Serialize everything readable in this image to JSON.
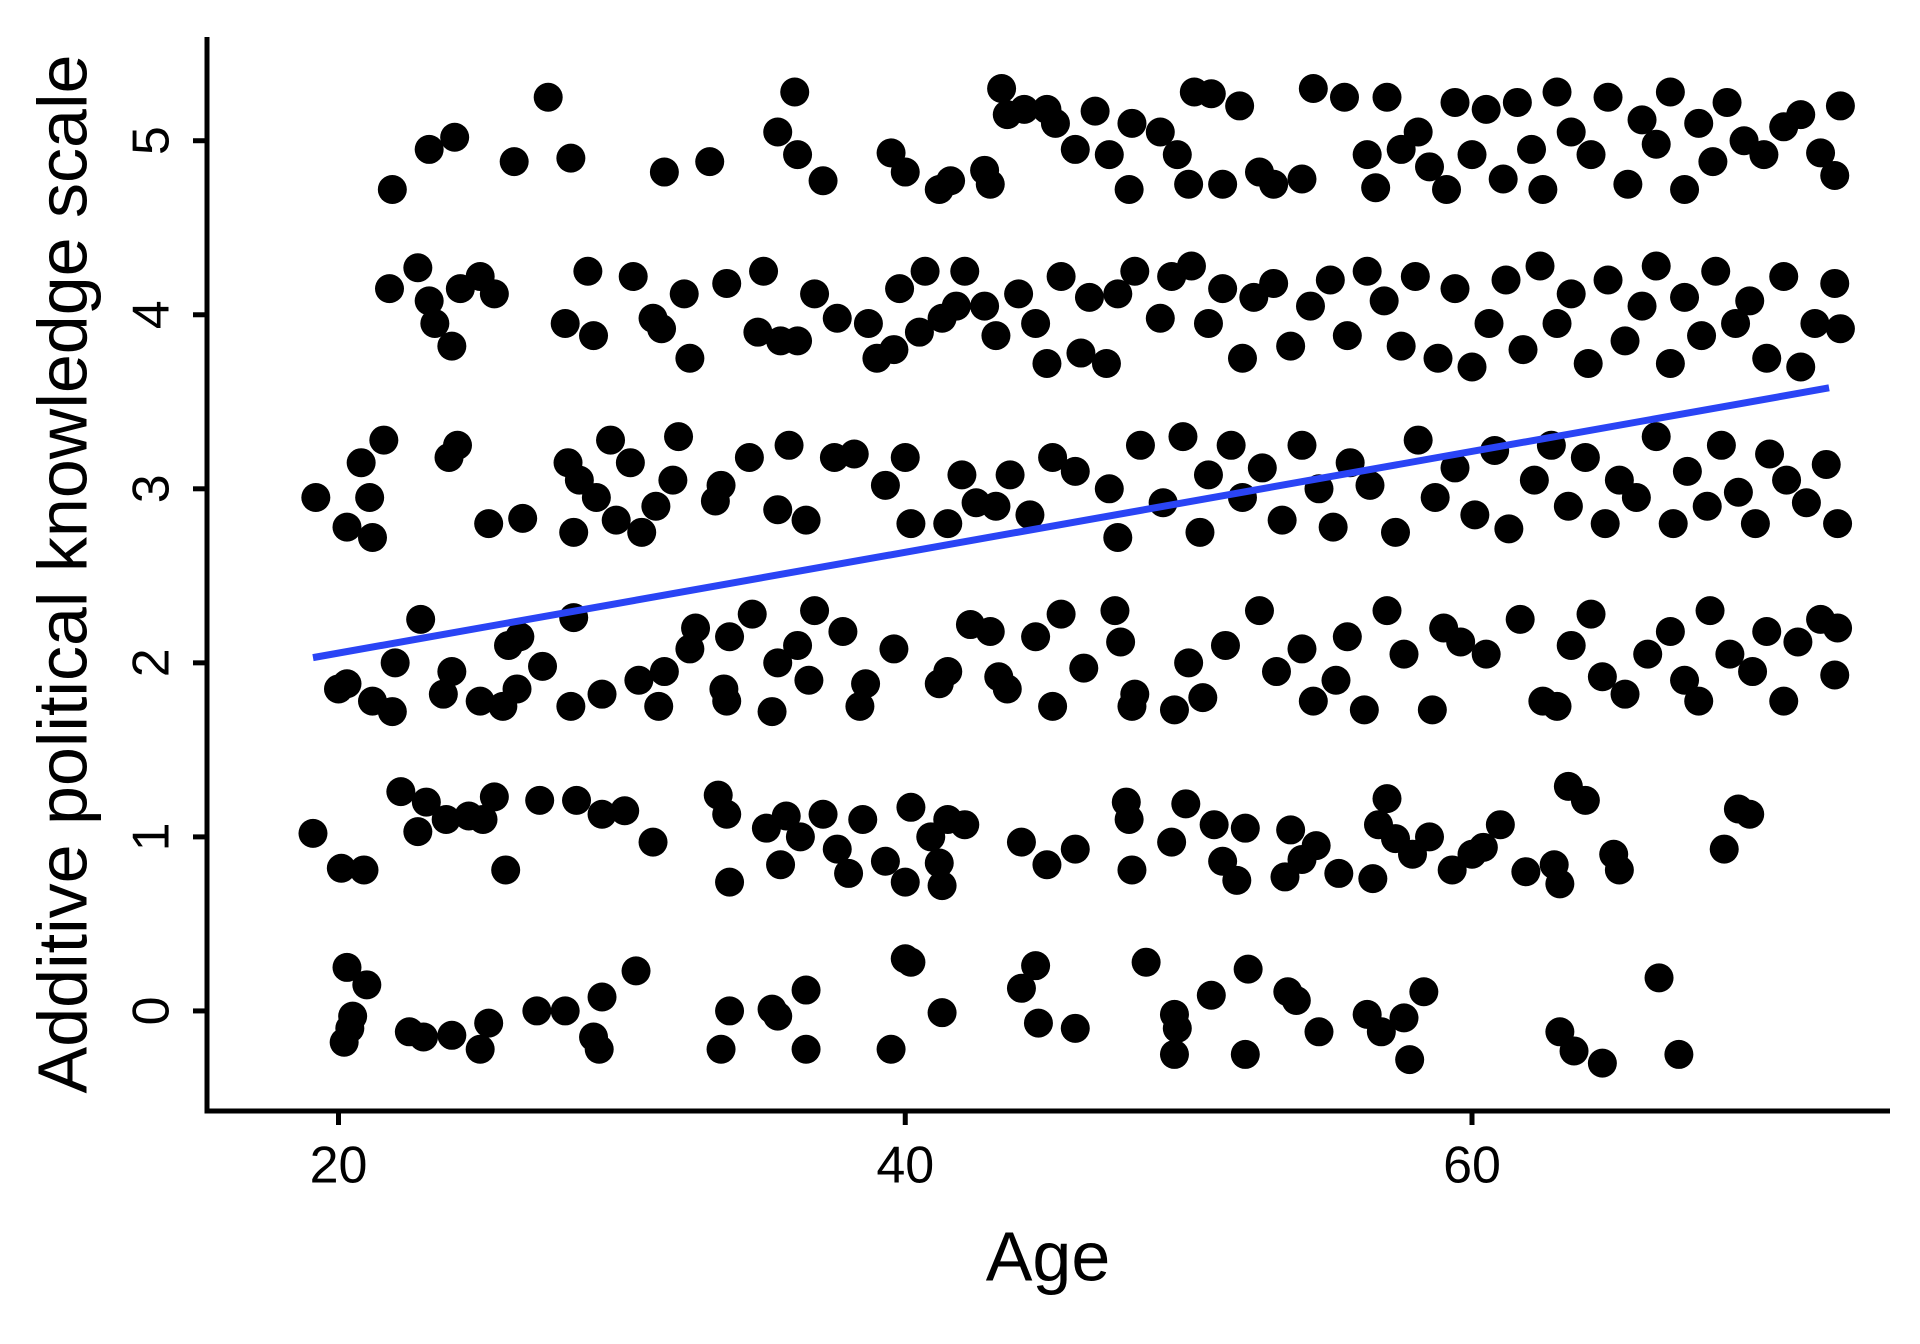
{
  "chart_data": {
    "type": "scatter",
    "xlabel": "Age",
    "ylabel": "Additive political knowledge scale",
    "xlim": [
      15.36,
      74.75
    ],
    "ylim": [
      -0.575,
      5.596
    ],
    "xticks": [
      20,
      40,
      60
    ],
    "yticks": [
      0,
      1,
      2,
      3,
      4,
      5
    ],
    "series": [
      {
        "color": "#000000",
        "x": [
          20.2,
          20.4,
          20.5,
          20.3,
          21.0,
          22.5,
          23,
          24,
          25,
          25.3,
          27,
          28,
          29,
          29.2,
          29.3,
          30.5,
          33.5,
          33.8,
          35.3,
          35.5,
          36.5,
          36.5,
          39.5,
          40,
          40.2,
          41.3,
          44.1,
          44.6,
          44.7,
          46,
          48.5,
          49.5,
          49.6,
          49.5,
          50.8,
          52,
          52.1,
          53.5,
          53.8,
          54.6,
          56.3,
          56.8,
          57.6,
          57.8,
          58.3,
          63.1,
          63.6,
          64.6,
          66.6,
          67.3,
          19.1,
          20.1,
          20.9,
          22.2,
          22.8,
          23.1,
          23.8,
          24.6,
          25.1,
          25.5,
          25.9,
          27.1,
          28.4,
          29.3,
          30.1,
          31.1,
          33.4,
          33.7,
          33.8,
          35.1,
          35.6,
          35.8,
          36.3,
          37.1,
          37.6,
          38,
          38.5,
          39.3,
          40,
          40.2,
          40.9,
          41.2,
          41.3,
          41.5,
          42.1,
          44.1,
          45,
          46,
          47.8,
          47.9,
          48,
          49.4,
          49.9,
          50.9,
          51.2,
          51.7,
          52,
          53.4,
          53.6,
          54,
          54.5,
          55.3,
          56.5,
          56.7,
          57,
          57.3,
          57.9,
          58.5,
          59.3,
          60,
          60.4,
          61,
          61.9,
          62.9,
          63.1,
          63.4,
          64,
          65,
          65.2,
          68.9,
          69.4,
          69.8,
          20,
          20.3,
          21.2,
          21.9,
          22,
          22.9,
          23.7,
          24,
          25,
          25.8,
          26,
          26.3,
          26.4,
          27.2,
          28.2,
          28.3,
          29.3,
          30.6,
          31.3,
          31.5,
          32.4,
          32.6,
          33.6,
          33.7,
          33.8,
          34.6,
          35.3,
          35.5,
          36.2,
          36.6,
          36.8,
          37.8,
          38.4,
          38.6,
          39.6,
          41.2,
          41.5,
          42.3,
          43,
          43.3,
          43.6,
          44.6,
          45.2,
          45.5,
          46.3,
          47.4,
          47.6,
          48.1,
          48,
          49.5,
          50,
          50.5,
          51.3,
          52.5,
          53.1,
          54,
          54.4,
          55.2,
          55.6,
          56.2,
          57,
          57.6,
          58.6,
          59,
          59.6,
          60.5,
          61.7,
          62.5,
          63,
          63.5,
          64.2,
          64.6,
          65.4,
          66.2,
          67,
          67.5,
          68,
          68.4,
          69.1,
          69.9,
          70.4,
          71,
          71.5,
          72.3,
          72.8,
          72.9,
          19.2,
          20.3,
          20.8,
          21.1,
          21.2,
          21.6,
          23.9,
          24.2,
          25.3,
          26.5,
          28.1,
          28.3,
          28.5,
          29.1,
          29.6,
          29.8,
          30.3,
          30.7,
          31.2,
          31.8,
          32,
          33.3,
          33.5,
          34.5,
          35.5,
          35.9,
          36.5,
          37.5,
          38.2,
          39.3,
          40,
          40.2,
          41.5,
          42,
          42.5,
          43.2,
          43.7,
          44.4,
          45.2,
          46,
          47.2,
          47.5,
          48.3,
          49.1,
          49.8,
          50.4,
          50.7,
          51.5,
          51.9,
          52.6,
          53.3,
          54,
          54.6,
          55.1,
          55.7,
          56.4,
          57.3,
          58.1,
          58.7,
          59.4,
          60.1,
          60.8,
          61.3,
          62.2,
          62.8,
          63.4,
          64,
          64.7,
          65.2,
          65.8,
          66.5,
          67.1,
          67.6,
          68.3,
          68.8,
          69.4,
          70,
          70.5,
          71.1,
          71.8,
          72.5,
          72.9,
          21.8,
          22.8,
          23.2,
          23.4,
          24,
          24.3,
          25,
          25.5,
          28,
          28.8,
          29,
          30.4,
          31.1,
          31.4,
          32.2,
          32.4,
          33.7,
          34.8,
          35,
          35.6,
          36.2,
          36.8,
          37.6,
          38.7,
          39,
          39.6,
          39.8,
          40.5,
          40.7,
          41.3,
          41.8,
          42.1,
          42.8,
          43.2,
          44,
          44.6,
          45,
          45.5,
          46.2,
          46.5,
          47.1,
          47.5,
          48.1,
          49,
          49.4,
          50.1,
          50.7,
          51.2,
          51.9,
          52.3,
          53,
          53.6,
          54.3,
          55,
          55.6,
          56.3,
          56.9,
          57.5,
          58,
          58.8,
          59.4,
          60,
          60.6,
          61.2,
          61.8,
          62.4,
          63,
          63.5,
          64.1,
          64.8,
          65.4,
          66,
          66.5,
          67,
          67.5,
          68.1,
          68.6,
          69.3,
          69.8,
          70.4,
          71,
          71.6,
          72.1,
          72.8,
          73,
          21.9,
          23.2,
          24.1,
          26.2,
          27.4,
          28.2,
          31.5,
          33.1,
          35.5,
          36.1,
          36.2,
          37.1,
          39.5,
          40,
          41.2,
          41.6,
          42.8,
          43,
          43.4,
          43.6,
          44.2,
          45,
          45.3,
          46,
          46.7,
          47.2,
          47.9,
          48,
          49,
          49.6,
          50,
          50.2,
          50.8,
          51.2,
          51.8,
          52.5,
          53,
          54,
          54.4,
          55.5,
          56.3,
          56.6,
          57,
          57.5,
          58.1,
          58.5,
          59.1,
          59.4,
          60,
          60.5,
          61.1,
          61.6,
          62.1,
          62.5,
          63,
          63.5,
          64.2,
          64.8,
          65.5,
          66,
          66.5,
          67,
          67.5,
          68,
          68.5,
          69,
          69.6,
          70.3,
          71,
          71.6,
          72.3,
          72.8,
          73
        ],
        "y": [
          -0.18,
          -0.1,
          -0.03,
          0.25,
          0.15,
          -0.12,
          -0.15,
          -0.14,
          -0.22,
          -0.07,
          0,
          0,
          -0.15,
          -0.22,
          0.08,
          0.23,
          -0.22,
          0,
          0.01,
          -0.03,
          0.12,
          -0.22,
          -0.22,
          0.3,
          0.28,
          -0.01,
          0.13,
          0.26,
          -0.07,
          -0.1,
          0.28,
          -0.02,
          -0.1,
          -0.25,
          0.09,
          -0.25,
          0.24,
          0.11,
          0.06,
          -0.12,
          -0.02,
          -0.12,
          -0.04,
          -0.28,
          0.11,
          -0.12,
          -0.23,
          -0.3,
          0.19,
          -0.25,
          1.02,
          0.82,
          0.81,
          1.26,
          1.03,
          1.2,
          1.1,
          1.12,
          1.1,
          1.23,
          0.81,
          1.21,
          1.21,
          1.13,
          1.15,
          0.97,
          1.24,
          1.13,
          0.74,
          1.05,
          0.84,
          1.12,
          1.0,
          1.13,
          0.93,
          0.79,
          1.1,
          0.86,
          0.74,
          1.17,
          1.0,
          0.85,
          0.72,
          1.1,
          1.07,
          0.97,
          0.84,
          0.93,
          1.2,
          1.1,
          0.81,
          0.97,
          1.19,
          1.07,
          0.86,
          0.75,
          1.05,
          0.77,
          1.04,
          0.87,
          0.95,
          0.79,
          0.76,
          1.07,
          1.22,
          0.99,
          0.9,
          1.0,
          0.81,
          0.9,
          0.94,
          1.07,
          0.8,
          0.84,
          0.73,
          1.29,
          1.21,
          0.9,
          0.81,
          0.93,
          1.16,
          1.13,
          1.85,
          1.88,
          1.78,
          1.72,
          2.0,
          2.25,
          1.82,
          1.95,
          1.78,
          1.75,
          2.1,
          1.85,
          2.15,
          1.98,
          1.75,
          2.26,
          1.82,
          1.9,
          1.75,
          1.95,
          2.08,
          2.2,
          1.85,
          1.78,
          2.15,
          2.28,
          1.72,
          2.0,
          2.1,
          1.9,
          2.3,
          2.18,
          1.75,
          1.88,
          2.08,
          1.88,
          1.95,
          2.22,
          2.18,
          1.92,
          1.85,
          2.15,
          1.75,
          2.28,
          1.97,
          2.3,
          2.12,
          1.82,
          1.75,
          1.73,
          2.0,
          1.8,
          2.1,
          2.3,
          1.95,
          2.08,
          1.78,
          1.9,
          2.15,
          1.73,
          2.3,
          2.05,
          1.73,
          2.2,
          2.12,
          2.05,
          2.25,
          1.78,
          1.75,
          2.1,
          2.28,
          1.92,
          1.82,
          2.05,
          2.18,
          1.9,
          1.78,
          2.3,
          2.05,
          1.95,
          2.18,
          1.78,
          2.12,
          2.25,
          1.93,
          2.2,
          2.95,
          2.78,
          3.15,
          2.95,
          2.72,
          3.28,
          3.18,
          3.25,
          2.8,
          2.83,
          3.15,
          2.75,
          3.05,
          2.95,
          3.28,
          2.82,
          3.15,
          2.75,
          2.9,
          3.05,
          3.3,
          2.93,
          3.02,
          3.18,
          2.88,
          3.25,
          2.82,
          3.18,
          3.2,
          3.02,
          3.18,
          2.8,
          2.8,
          3.08,
          2.92,
          2.9,
          3.08,
          2.85,
          3.18,
          3.1,
          3.0,
          2.72,
          3.25,
          2.92,
          3.3,
          2.75,
          3.08,
          3.25,
          2.95,
          3.12,
          2.82,
          3.25,
          3.0,
          2.78,
          3.15,
          3.02,
          2.75,
          3.28,
          2.95,
          3.12,
          2.85,
          3.22,
          2.77,
          3.05,
          3.25,
          2.9,
          3.18,
          2.8,
          3.05,
          2.95,
          3.3,
          2.8,
          3.1,
          2.9,
          3.25,
          2.98,
          2.8,
          3.2,
          3.05,
          2.92,
          3.14,
          2.8,
          4.15,
          4.27,
          4.08,
          3.95,
          3.82,
          4.15,
          4.22,
          4.12,
          3.95,
          4.25,
          3.88,
          4.22,
          3.98,
          3.92,
          4.12,
          3.75,
          4.18,
          3.9,
          4.25,
          3.85,
          3.85,
          4.12,
          3.98,
          3.95,
          3.75,
          3.8,
          4.15,
          3.9,
          4.25,
          3.98,
          4.05,
          4.25,
          4.05,
          3.88,
          4.12,
          3.95,
          3.72,
          4.22,
          3.78,
          4.1,
          3.72,
          4.12,
          4.25,
          3.98,
          4.22,
          4.28,
          3.95,
          4.15,
          3.75,
          4.1,
          4.18,
          3.82,
          4.05,
          4.2,
          3.88,
          4.25,
          4.08,
          3.82,
          4.22,
          3.75,
          4.15,
          3.7,
          3.95,
          4.2,
          3.8,
          4.28,
          3.95,
          4.12,
          3.72,
          4.2,
          3.85,
          4.05,
          4.28,
          3.72,
          4.1,
          3.88,
          4.25,
          3.95,
          4.08,
          3.75,
          4.22,
          3.7,
          3.95,
          4.18,
          3.92,
          4.72,
          4.95,
          5.02,
          4.88,
          5.25,
          4.9,
          4.82,
          4.88,
          5.05,
          5.28,
          4.92,
          4.77,
          4.93,
          4.82,
          4.72,
          4.77,
          4.83,
          4.75,
          5.3,
          5.15,
          5.18,
          5.18,
          5.1,
          4.95,
          5.17,
          4.92,
          4.72,
          5.1,
          5.05,
          4.92,
          4.75,
          5.28,
          5.27,
          4.75,
          5.2,
          4.82,
          4.75,
          4.78,
          5.3,
          5.25,
          4.92,
          4.73,
          5.25,
          4.95,
          5.05,
          4.85,
          4.72,
          5.22,
          4.92,
          5.18,
          4.78,
          5.22,
          4.95,
          4.72,
          5.28,
          5.05,
          4.92,
          5.25,
          4.75,
          5.12,
          4.98,
          5.28,
          4.72,
          5.1,
          4.88,
          5.22,
          5.0,
          4.92,
          5.08,
          5.15,
          4.93,
          4.8,
          5.2
        ]
      }
    ],
    "fit": {
      "color": "#2a44f5",
      "x": [
        19.1,
        72.6
      ],
      "y": [
        2.03,
        3.58
      ]
    }
  }
}
